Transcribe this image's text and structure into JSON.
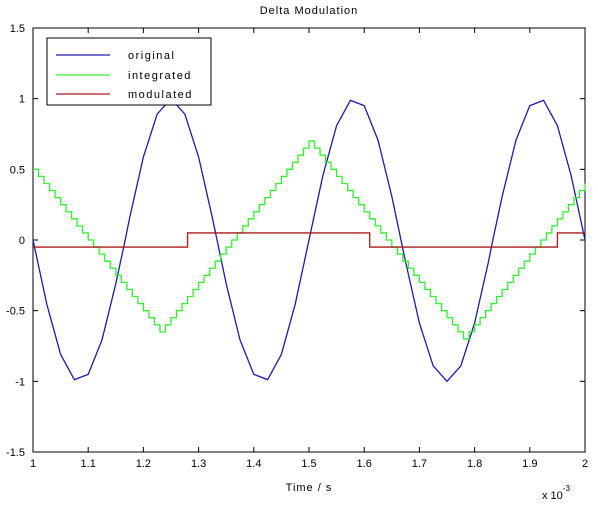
{
  "chart_data": {
    "type": "line",
    "title": "Delta Modulation",
    "xlabel": "Time / s",
    "ylabel": "",
    "x_multiplier_label": "x 10",
    "x_multiplier_exp": "-3",
    "xlim": [
      1.0,
      2.0
    ],
    "ylim": [
      -1.5,
      1.5
    ],
    "xticks": [
      "1",
      "1.1",
      "1.2",
      "1.3",
      "1.4",
      "1.5",
      "1.6",
      "1.7",
      "1.8",
      "1.9",
      "2"
    ],
    "yticks": [
      "1.5",
      "1",
      "0.5",
      "0",
      "-0.5",
      "-1",
      "-1.5"
    ],
    "grid": false,
    "legend_position": "top-left",
    "legend": [
      "original",
      "integrated",
      "modulated"
    ],
    "series": [
      {
        "name": "original",
        "color": "#1c1caa",
        "style": "line",
        "x": [
          1.0,
          1.025,
          1.05,
          1.075,
          1.1,
          1.125,
          1.15,
          1.167,
          1.175,
          1.2,
          1.225,
          1.25,
          1.275,
          1.3,
          1.325,
          1.35,
          1.375,
          1.4,
          1.425,
          1.45,
          1.475,
          1.5,
          1.525,
          1.55,
          1.575,
          1.6,
          1.625,
          1.65,
          1.675,
          1.7,
          1.725,
          1.75,
          1.775,
          1.8,
          1.825,
          1.833,
          1.85,
          1.875,
          1.9,
          1.925,
          1.95,
          1.975,
          2.0
        ],
        "y": [
          0.0,
          -0.454,
          -0.809,
          -0.988,
          -0.951,
          -0.707,
          -0.309,
          0.0,
          0.156,
          0.588,
          0.891,
          1.0,
          0.891,
          0.588,
          0.156,
          -0.309,
          -0.707,
          -0.951,
          -0.988,
          -0.809,
          -0.454,
          0.0,
          0.454,
          0.809,
          0.988,
          0.951,
          0.707,
          0.309,
          -0.156,
          -0.588,
          -0.891,
          -1.0,
          -0.891,
          -0.588,
          -0.156,
          0.0,
          0.309,
          0.707,
          0.951,
          0.988,
          0.809,
          0.454,
          0.0
        ]
      },
      {
        "name": "integrated",
        "color": "#33ee33",
        "style": "step",
        "x": [
          1.0,
          1.01,
          1.02,
          1.03,
          1.04,
          1.05,
          1.06,
          1.07,
          1.08,
          1.09,
          1.1,
          1.11,
          1.12,
          1.13,
          1.14,
          1.15,
          1.16,
          1.17,
          1.18,
          1.19,
          1.2,
          1.21,
          1.22,
          1.23,
          1.24,
          1.25,
          1.26,
          1.27,
          1.28,
          1.29,
          1.3,
          1.31,
          1.32,
          1.33,
          1.34,
          1.35,
          1.36,
          1.37,
          1.38,
          1.39,
          1.4,
          1.41,
          1.42,
          1.43,
          1.44,
          1.45,
          1.46,
          1.47,
          1.48,
          1.49,
          1.5,
          1.51,
          1.52,
          1.53,
          1.54,
          1.55,
          1.56,
          1.57,
          1.58,
          1.59,
          1.6,
          1.61,
          1.62,
          1.63,
          1.64,
          1.65,
          1.66,
          1.67,
          1.68,
          1.69,
          1.7,
          1.71,
          1.72,
          1.73,
          1.74,
          1.75,
          1.76,
          1.77,
          1.78,
          1.79,
          1.8,
          1.81,
          1.82,
          1.83,
          1.84,
          1.85,
          1.86,
          1.87,
          1.88,
          1.89,
          1.9,
          1.91,
          1.92,
          1.93,
          1.94,
          1.95,
          1.96,
          1.97,
          1.98,
          1.99,
          2.0
        ],
        "y": [
          0.5,
          0.45,
          0.4,
          0.35,
          0.3,
          0.25,
          0.2,
          0.15,
          0.1,
          0.05,
          0.0,
          -0.05,
          -0.1,
          -0.15,
          -0.2,
          -0.25,
          -0.3,
          -0.35,
          -0.4,
          -0.45,
          -0.5,
          -0.55,
          -0.6,
          -0.65,
          -0.6,
          -0.55,
          -0.5,
          -0.45,
          -0.4,
          -0.35,
          -0.3,
          -0.25,
          -0.2,
          -0.15,
          -0.1,
          -0.05,
          0.0,
          0.05,
          0.1,
          0.15,
          0.2,
          0.25,
          0.3,
          0.35,
          0.4,
          0.45,
          0.5,
          0.55,
          0.6,
          0.65,
          0.7,
          0.65,
          0.6,
          0.55,
          0.5,
          0.45,
          0.4,
          0.35,
          0.3,
          0.25,
          0.2,
          0.15,
          0.1,
          0.05,
          0.0,
          -0.05,
          -0.1,
          -0.15,
          -0.2,
          -0.25,
          -0.3,
          -0.35,
          -0.4,
          -0.45,
          -0.5,
          -0.55,
          -0.6,
          -0.65,
          -0.7,
          -0.65,
          -0.6,
          -0.55,
          -0.5,
          -0.45,
          -0.4,
          -0.35,
          -0.3,
          -0.25,
          -0.2,
          -0.15,
          -0.1,
          -0.05,
          0.0,
          0.05,
          0.1,
          0.15,
          0.2,
          0.25,
          0.3,
          0.35,
          0.4
        ]
      },
      {
        "name": "modulated",
        "color": "#aa1a1a",
        "style": "line",
        "x": [
          1.0,
          1.28,
          1.28,
          1.61,
          1.61,
          1.95,
          1.95,
          2.0
        ],
        "y": [
          -0.05,
          -0.05,
          0.05,
          0.05,
          -0.05,
          -0.05,
          0.05,
          0.05
        ]
      }
    ]
  }
}
